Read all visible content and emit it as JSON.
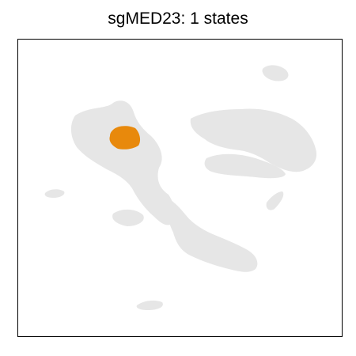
{
  "title": "sgMED23: 1 states",
  "chart_data": {
    "type": "scatter",
    "title": "sgMED23: 1 states",
    "xlabel": "",
    "ylabel": "",
    "axes_visible": false,
    "grid": false,
    "legend": "none",
    "background_color": "#e6e6e6",
    "highlight_color": "#e8890c",
    "series": [
      {
        "name": "",
        "role": "background",
        "color": "#e6e6e6"
      },
      {
        "name": "",
        "role": "highlight",
        "color": "#e8890c"
      }
    ]
  }
}
